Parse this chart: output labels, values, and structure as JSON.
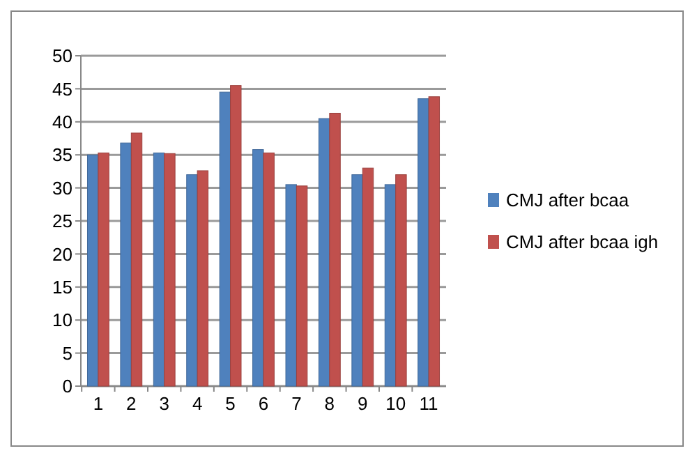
{
  "chart_data": {
    "type": "bar",
    "categories": [
      "1",
      "2",
      "3",
      "4",
      "5",
      "6",
      "7",
      "8",
      "9",
      "10",
      "11"
    ],
    "series": [
      {
        "name": "CMJ after bcaa",
        "color": "#4f81bd",
        "values": [
          35,
          36.8,
          35.3,
          32,
          44.5,
          35.8,
          30.5,
          40.5,
          32,
          30.5,
          43.5
        ]
      },
      {
        "name": "CMJ after bcaa igh",
        "color": "#c0504d",
        "values": [
          35.3,
          38.3,
          35.2,
          32.6,
          45.5,
          35.3,
          30.3,
          41.3,
          33,
          32,
          43.8
        ]
      }
    ],
    "ylim": [
      0,
      50
    ],
    "yticks": [
      0,
      5,
      10,
      15,
      20,
      25,
      30,
      35,
      40,
      45,
      50
    ],
    "grid": "y",
    "legend": "right"
  }
}
